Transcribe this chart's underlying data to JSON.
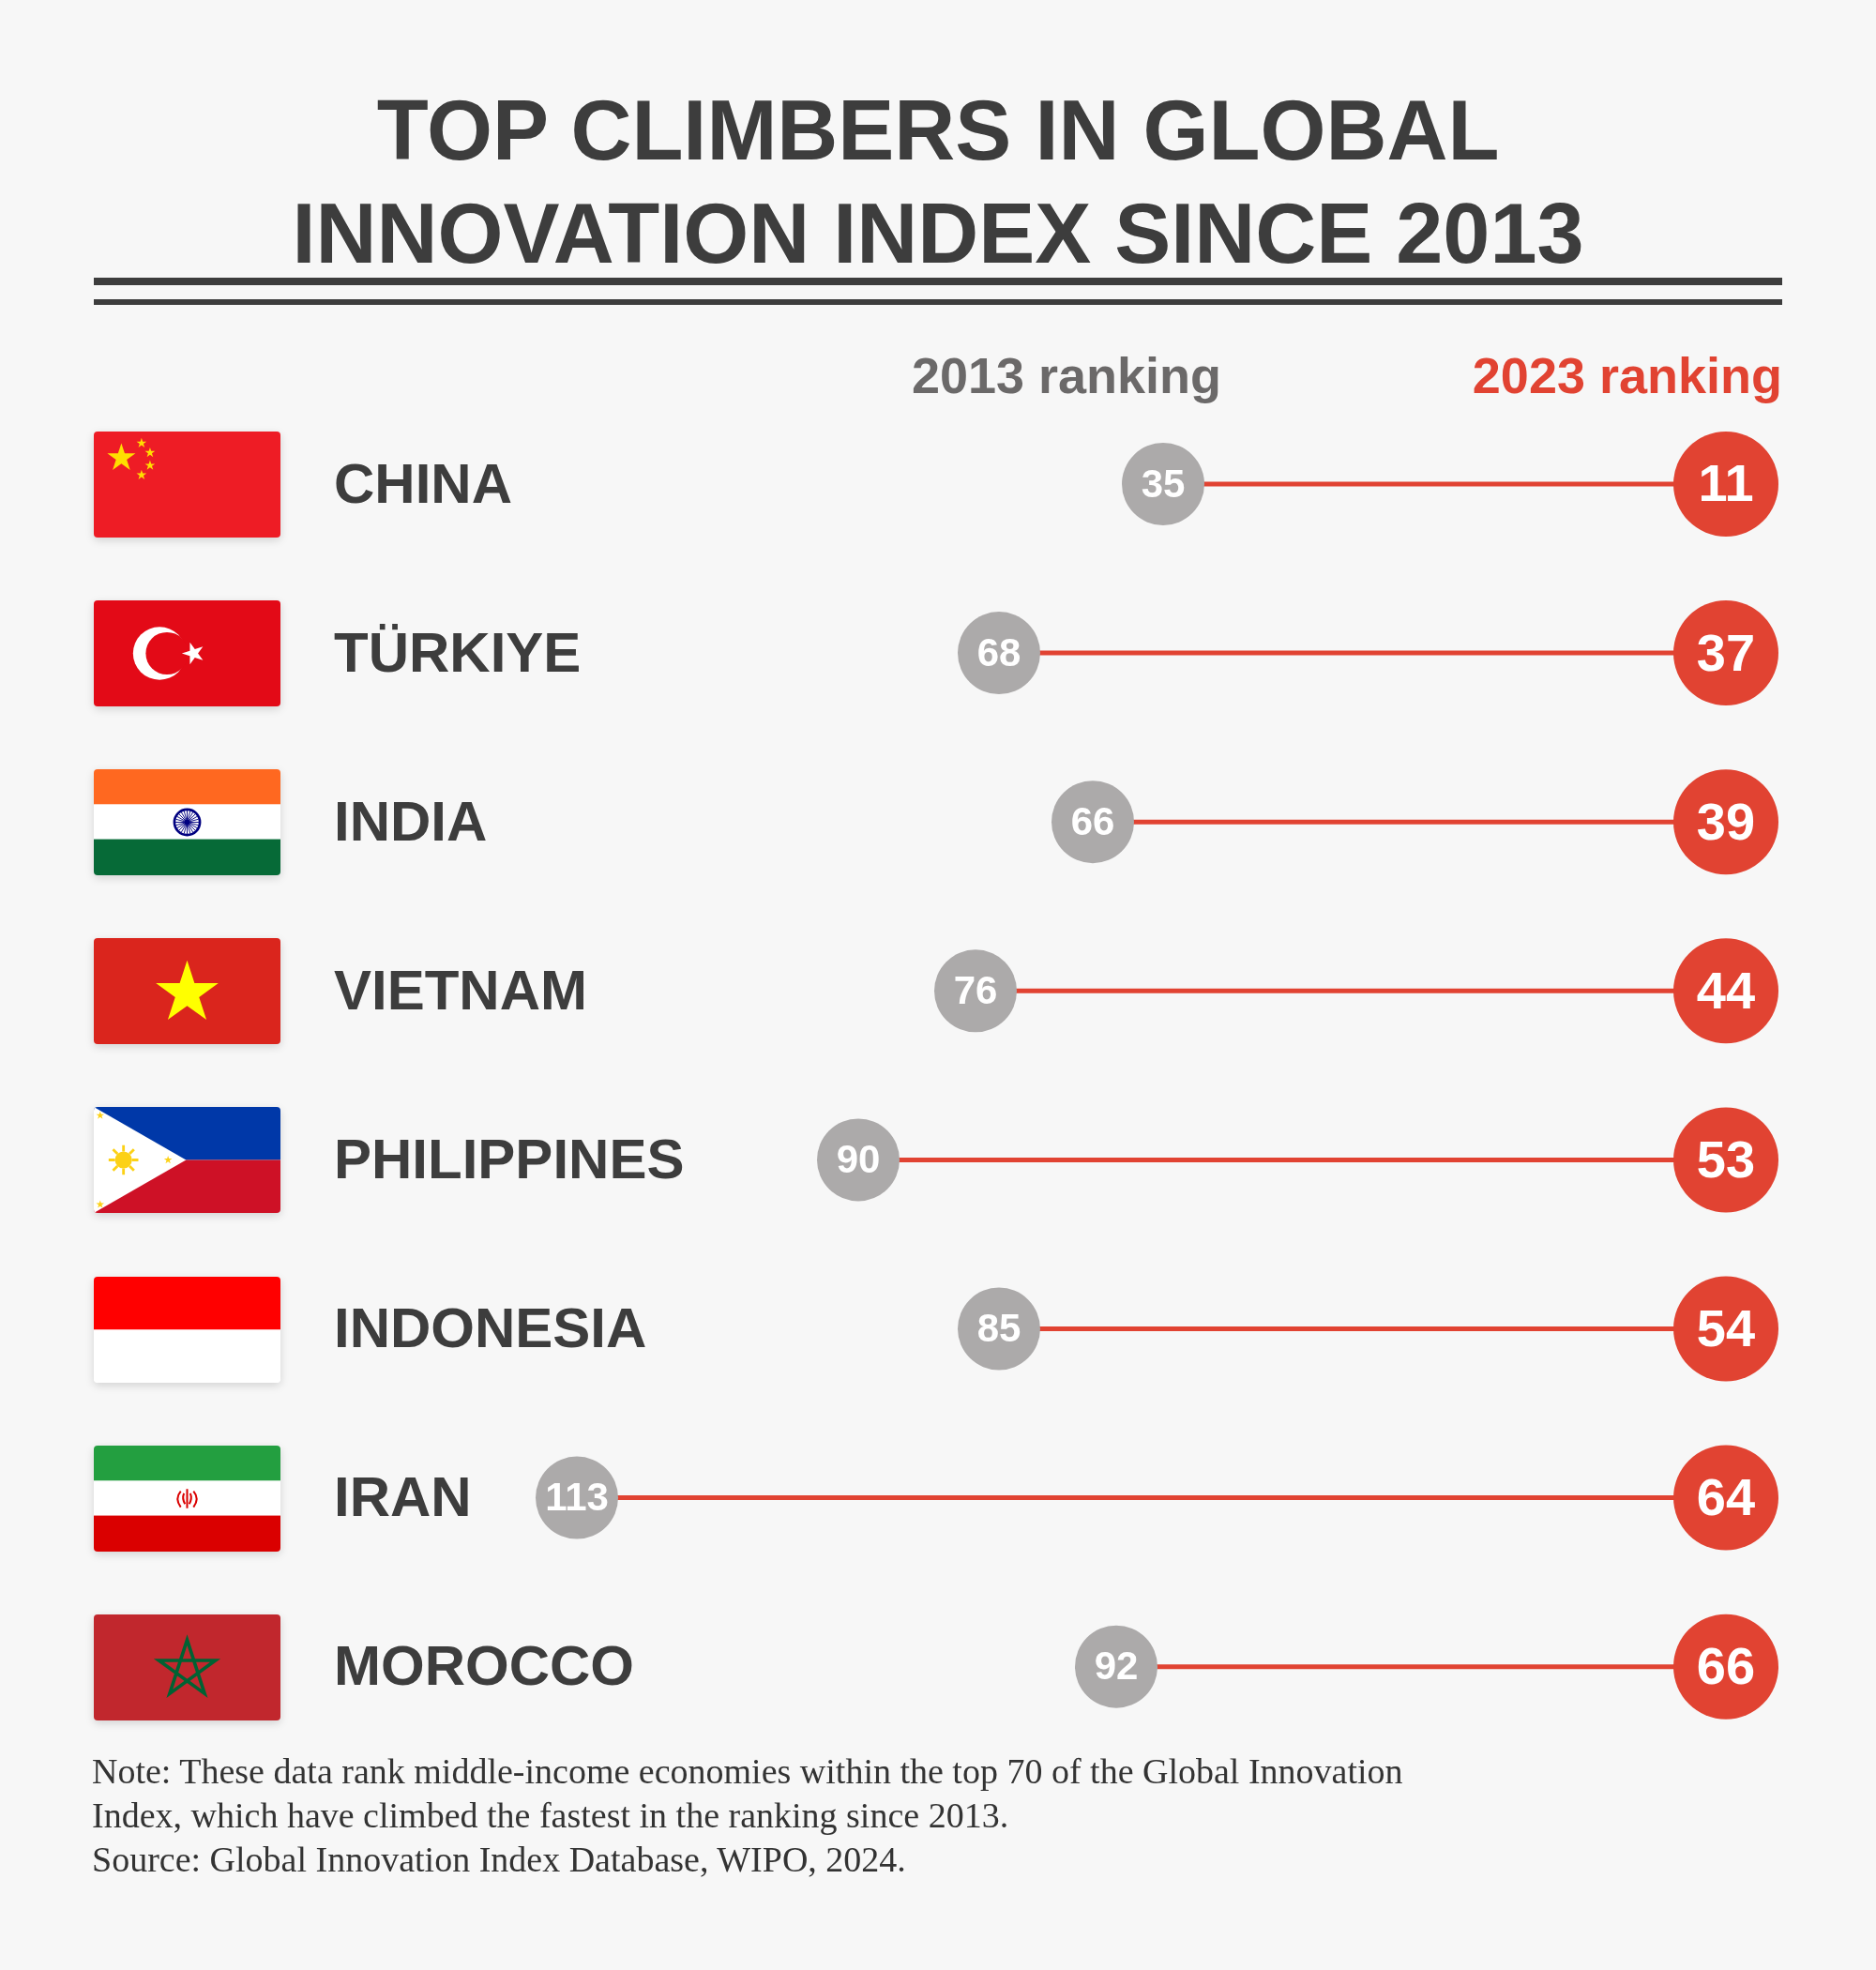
{
  "chart_data": {
    "type": "other",
    "title": "TOP CLIMBERS IN GLOBAL INNOVATION INDEX SINCE 2013",
    "categories": [
      "CHINA",
      "TÜRKIYE",
      "INDIA",
      "VIETNAM",
      "PHILIPPINES",
      "INDONESIA",
      "IRAN",
      "MOROCCO"
    ],
    "series": [
      {
        "name": "2013 ranking",
        "color": "#acaaaa",
        "values": [
          35,
          68,
          66,
          76,
          90,
          85,
          113,
          92
        ]
      },
      {
        "name": "2023 ranking",
        "color": "#e14332",
        "values": [
          11,
          37,
          39,
          44,
          53,
          54,
          64,
          66
        ]
      }
    ],
    "data_labels": true,
    "annotations": [
      "Note: These data rank middle-income economies within the top 70 of the Global Innovation Index, which have climbed the fastest in the ranking since 2013.",
      "Source: Global Innovation Index Database, WIPO, 2024."
    ]
  }
}
